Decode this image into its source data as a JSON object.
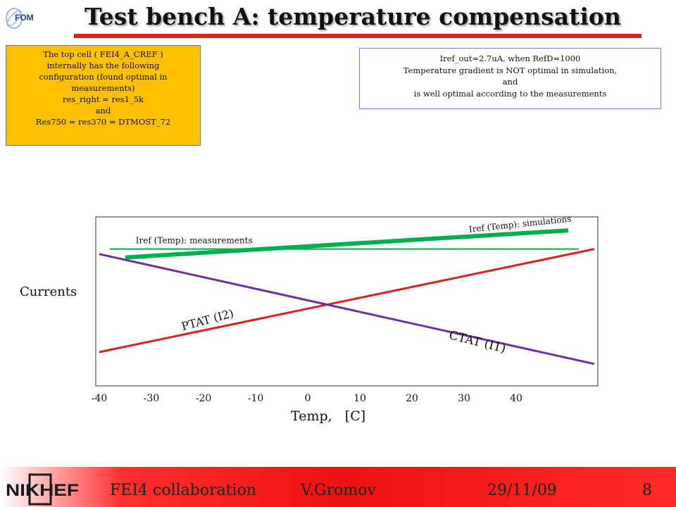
{
  "header": {
    "title": "Test bench A: temperature compensation",
    "logo_text": "FOM"
  },
  "notes": {
    "left_lines": [
      "The top cell ( FEI4_A_CREF )",
      "internally has the following",
      "configuration (found optimal in",
      "measurements)",
      "res_right = res1_5k",
      "and",
      "Res750 = res370 = DTMOST_72"
    ],
    "right_lines": [
      "Iref_out=2.7uA, when RefD=1000",
      "Temperature gradient is NOT optimal in simulation,",
      "and",
      "is well optimal according to the measurements"
    ],
    "left_bg": "#ffc000"
  },
  "chart_data": {
    "type": "line",
    "xlabel": "Temp,   [C]",
    "ylabel": "Currents",
    "x_ticks": [
      "-40",
      "-30",
      "-20",
      "-10",
      "0",
      "10",
      "20",
      "30",
      "40"
    ],
    "x_tick_values": [
      -40,
      -30,
      -20,
      -10,
      0,
      10,
      20,
      30,
      40
    ],
    "xlim": [
      -40,
      55
    ],
    "ylim": [
      0,
      100
    ],
    "y_ticks_shown": false,
    "grid": false,
    "series": [
      {
        "name": "Iref (Temp): measurements",
        "color": "#00b050",
        "style": "thin",
        "x": [
          -38,
          52
        ],
        "y": [
          81,
          81
        ]
      },
      {
        "name": "Iref (Temp): simulations",
        "color": "#00b050",
        "style": "thick",
        "x": [
          -35,
          50
        ],
        "y": [
          76,
          92
        ]
      },
      {
        "name": "PTAT (I2)",
        "color": "#e02020",
        "style": "normal",
        "x": [
          -40,
          55
        ],
        "y": [
          20,
          81
        ]
      },
      {
        "name": "CTAT (I1)",
        "color": "#7030a0",
        "style": "normal",
        "x": [
          -40,
          55
        ],
        "y": [
          78,
          13
        ]
      }
    ]
  },
  "footer": {
    "collab": "FEI4 collaboration",
    "author": "V.Gromov",
    "date": "29/11/09",
    "page": "8",
    "logo_text": "NIKHEF"
  }
}
